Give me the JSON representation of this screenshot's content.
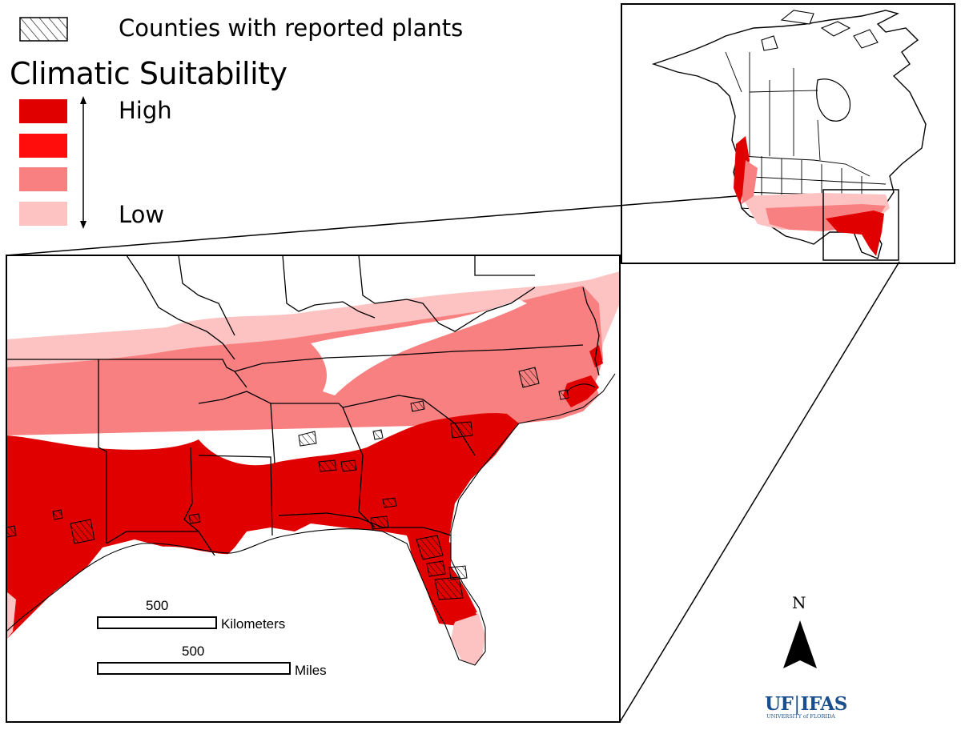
{
  "legend": {
    "counties_label": "Counties with reported plants",
    "title": "Climatic Suitability",
    "high_label": "High",
    "low_label": "Low",
    "suitability_colors": [
      "#e00000",
      "#ff0d0d",
      "#f98080",
      "#fdc2c2"
    ]
  },
  "scale": {
    "km_value": "500",
    "km_unit": "Kilometers",
    "mi_value": "500",
    "mi_unit": "Miles"
  },
  "north_arrow": {
    "label": "N"
  },
  "logo": {
    "primary": "UF",
    "secondary": "IFAS",
    "tagline": "UNIVERSITY of FLORIDA"
  },
  "map_colors": {
    "high": "#e00000",
    "medium_high": "#ff0d0d",
    "medium": "#f98080",
    "low": "#fdc2c2",
    "border": "#000000",
    "background": "#ffffff"
  }
}
